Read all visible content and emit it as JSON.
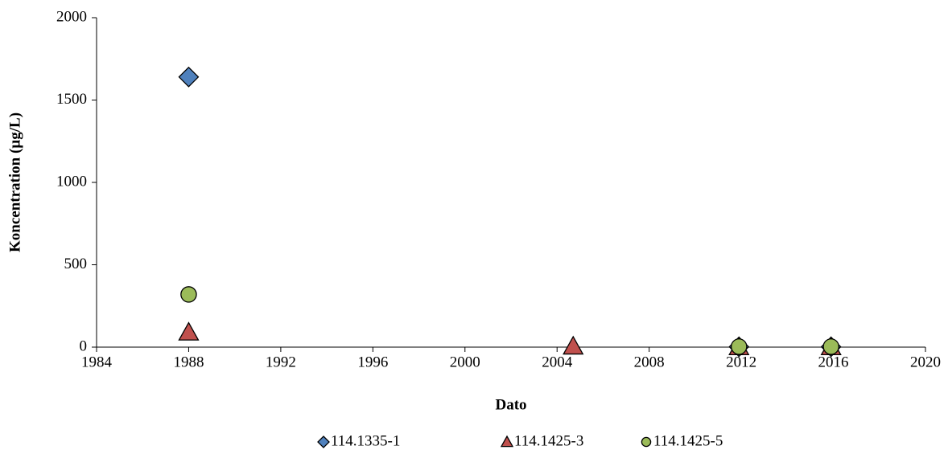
{
  "chart_data": {
    "type": "scatter",
    "x_label": "Dato",
    "y_label": "Koncentration (µg/L)",
    "xlim": [
      1984,
      2020
    ],
    "xticks": [
      1984,
      1988,
      1992,
      1996,
      2000,
      2004,
      2008,
      2012,
      2016,
      2020
    ],
    "ylim": [
      0,
      2000
    ],
    "yticks": [
      0,
      500,
      1000,
      1500,
      2000
    ],
    "grid": false,
    "legend": "bottom",
    "series": [
      {
        "name": "114.1335-1",
        "color": "#4f81bd",
        "marker": "diamond",
        "x": [
          1988,
          2011.9,
          2015.9
        ],
        "values": [
          1640,
          2,
          2
        ]
      },
      {
        "name": "114.1425-3",
        "color": "#c0504d",
        "marker": "triangle",
        "x": [
          1988,
          2004.7,
          2011.9,
          2015.9
        ],
        "values": [
          90,
          5,
          1,
          1
        ]
      },
      {
        "name": "114.1425-5",
        "color": "#9bbb59",
        "marker": "circle",
        "x": [
          1988,
          2011.9,
          2015.9
        ],
        "values": [
          320,
          3,
          3
        ]
      }
    ]
  }
}
